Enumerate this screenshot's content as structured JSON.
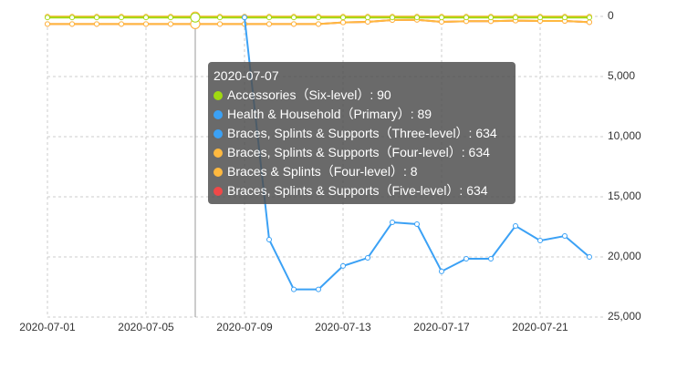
{
  "chart_data": {
    "type": "line",
    "title": "",
    "xlabel": "",
    "ylabel": "",
    "y_inverted": true,
    "ylim": [
      0,
      25000
    ],
    "y_ticks": [
      "0",
      "5,000",
      "10,000",
      "15,000",
      "20,000",
      "25,000"
    ],
    "y_axis_position": "right",
    "grid": true,
    "x": [
      "2020-07-01",
      "2020-07-02",
      "2020-07-03",
      "2020-07-04",
      "2020-07-05",
      "2020-07-06",
      "2020-07-07",
      "2020-07-08",
      "2020-07-09",
      "2020-07-10",
      "2020-07-11",
      "2020-07-12",
      "2020-07-13",
      "2020-07-14",
      "2020-07-15",
      "2020-07-16",
      "2020-07-17",
      "2020-07-18",
      "2020-07-19",
      "2020-07-20",
      "2020-07-21",
      "2020-07-22",
      "2020-07-23"
    ],
    "x_tick_labels": [
      "2020-07-01",
      "2020-07-05",
      "2020-07-09",
      "2020-07-13",
      "2020-07-17",
      "2020-07-21"
    ],
    "series": [
      {
        "name": "Accessories（Six-level）",
        "color": "#a0d911",
        "values": [
          90,
          90,
          90,
          90,
          90,
          90,
          90,
          90,
          90,
          90,
          90,
          90,
          90,
          90,
          90,
          90,
          90,
          90,
          90,
          90,
          90,
          90,
          90
        ]
      },
      {
        "name": "Health & Household（Primary）",
        "color": "#3ba1f5",
        "values": [
          89,
          89,
          89,
          89,
          89,
          89,
          89,
          89,
          89,
          18560,
          22700,
          22700,
          20750,
          20080,
          17120,
          17270,
          21200,
          20150,
          20150,
          17420,
          18640,
          18260,
          20000
        ]
      },
      {
        "name": "Braces, Splints & Supports（Three-level）",
        "color": "#3ba1f5",
        "values": [
          634,
          634,
          634,
          634,
          634,
          634,
          634,
          634,
          634,
          634,
          634,
          634,
          500,
          450,
          300,
          280,
          450,
          400,
          400,
          350,
          380,
          380,
          480
        ]
      },
      {
        "name": "Braces, Splints & Supports（Four-level）",
        "color": "#ffb93f",
        "values": [
          634,
          634,
          634,
          634,
          634,
          634,
          634,
          634,
          634,
          634,
          634,
          634,
          500,
          450,
          300,
          280,
          450,
          400,
          400,
          350,
          380,
          380,
          480
        ]
      },
      {
        "name": "Braces & Splints（Four-level）",
        "color": "#ffb93f",
        "values": [
          8,
          8,
          8,
          8,
          8,
          8,
          8,
          8,
          8,
          8,
          8,
          8,
          8,
          8,
          8,
          8,
          8,
          8,
          8,
          8,
          8,
          8,
          8
        ]
      },
      {
        "name": "Braces, Splints & Supports（Five-level）",
        "color": "#f04848",
        "values": [
          634,
          634,
          634,
          634,
          634,
          634,
          634,
          634,
          634,
          634,
          634,
          634,
          500,
          450,
          300,
          280,
          450,
          400,
          400,
          350,
          380,
          380,
          480
        ]
      }
    ]
  },
  "tooltip": {
    "title": "2020-07-07",
    "rows": [
      {
        "label": "Accessories（Six-level）: 90",
        "color": "#a0d911"
      },
      {
        "label": "Health & Household（Primary）: 89",
        "color": "#3ba1f5"
      },
      {
        "label": "Braces, Splints & Supports（Three-level）: 634",
        "color": "#3ba1f5"
      },
      {
        "label": "Braces, Splints & Supports（Four-level）: 634",
        "color": "#ffb93f"
      },
      {
        "label": "Braces & Splints（Four-level）: 8",
        "color": "#ffb93f"
      },
      {
        "label": "Braces, Splints & Supports（Five-level）: 634",
        "color": "#f04848"
      }
    ]
  },
  "axis": {
    "y_labels": [
      "0",
      "5,000",
      "10,000",
      "15,000",
      "20,000",
      "25,000"
    ],
    "x_labels": [
      "2020-07-01",
      "2020-07-05",
      "2020-07-09",
      "2020-07-13",
      "2020-07-17",
      "2020-07-21"
    ]
  }
}
